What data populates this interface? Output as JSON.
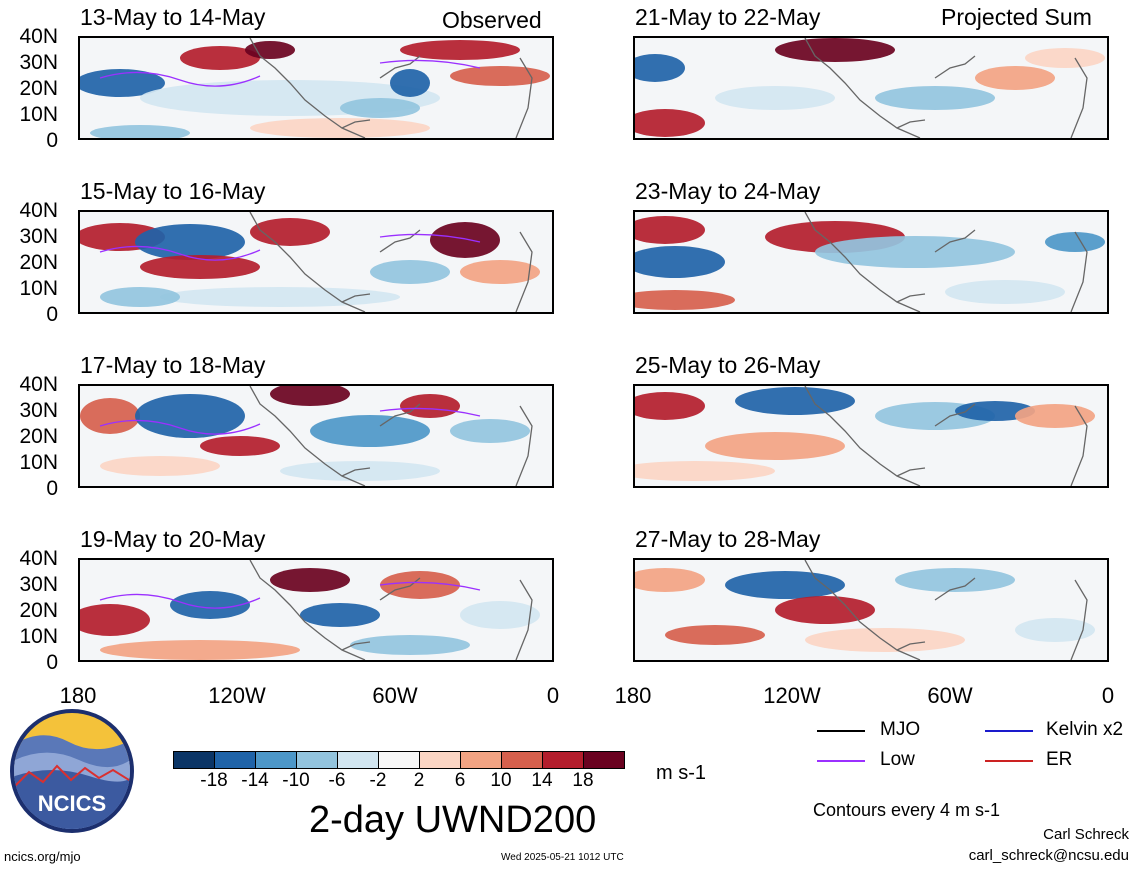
{
  "header": {
    "left_label": "Observed",
    "right_label": "Projected Sum"
  },
  "panels": {
    "observed": [
      "13-May to 14-May",
      "15-May to 16-May",
      "17-May to 18-May",
      "19-May to 20-May"
    ],
    "projected": [
      "21-May to 22-May",
      "23-May to 24-May",
      "25-May to 26-May",
      "27-May to 28-May"
    ]
  },
  "axes": {
    "y_ticks": [
      "40N",
      "30N",
      "20N",
      "10N",
      "0"
    ],
    "x_ticks": [
      "180",
      "120W",
      "60W",
      "0"
    ]
  },
  "colorbar": {
    "colors": [
      "#0b3566",
      "#1f63a8",
      "#4d97c8",
      "#93c4de",
      "#d2e6f1",
      "#f7f7f7",
      "#fbd5c4",
      "#f2a383",
      "#d6604d",
      "#b31d2c",
      "#6a0220"
    ],
    "labels": [
      "-18",
      "-14",
      "-10",
      "-6",
      "-2",
      "2",
      "6",
      "10",
      "14",
      "18"
    ],
    "units": "m s-1"
  },
  "title": "2-day UWND200",
  "legend": {
    "items": [
      {
        "label": "MJO",
        "color": "#000000"
      },
      {
        "label": "Kelvin x2",
        "color": "#1a1acc"
      },
      {
        "label": "Low",
        "color": "#9b30ff"
      },
      {
        "label": "ER",
        "color": "#cc2222"
      }
    ],
    "contour_note": "Contours every 4 m s-1"
  },
  "credits": {
    "author": "Carl Schreck",
    "email": "carl_schreck@ncsu.edu",
    "site": "ncics.org/mjo",
    "timestamp": "Wed 2025-05-21 1012 UTC",
    "logo_text": "NCICS"
  }
}
